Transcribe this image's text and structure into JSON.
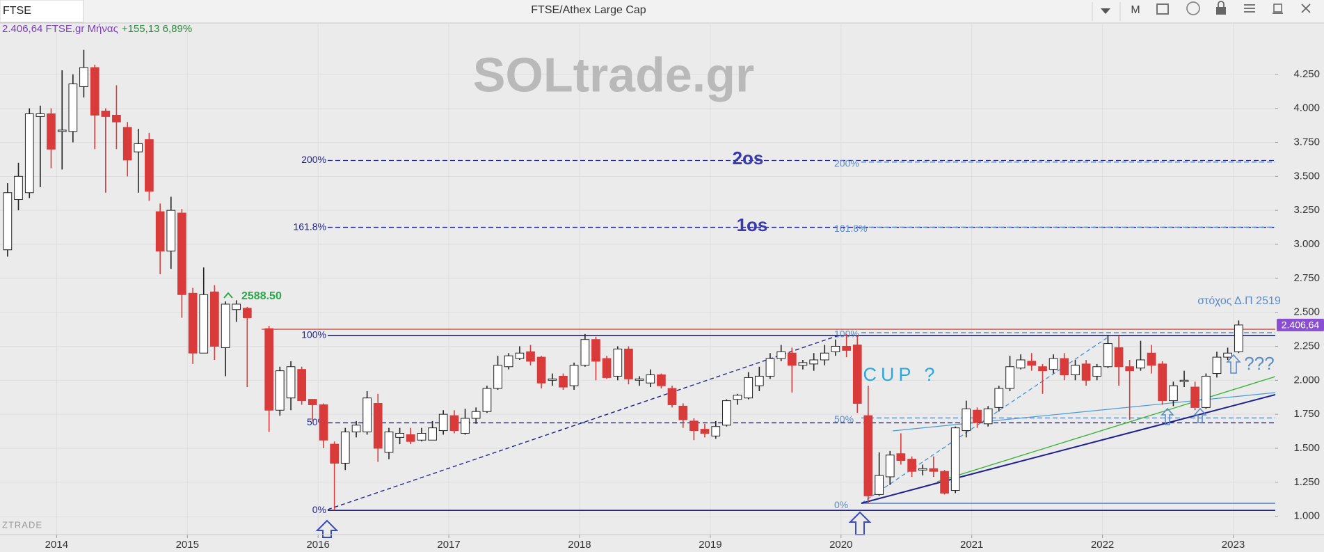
{
  "window": {
    "tab": "FTSE",
    "title": "FTSE/Athex Large Cap",
    "period_button": "M"
  },
  "chart_data": {
    "type": "candlestick",
    "info": "2.406,64 FTSE.gr Μήνας",
    "change": "+155,13 6,89%",
    "watermark": "SOLtrade.gr",
    "brand": "ZTRADE",
    "annotations": [
      "2os",
      "1os",
      "CUP ?",
      "στόχος Δ.Π 2519",
      "???",
      "2588.50"
    ],
    "up_color": "#ffffff",
    "up_stroke": "#222222",
    "down_color": "#d93a3a",
    "grid": true,
    "xlim": [
      2013.567,
      2023.322
    ],
    "xticks": [
      2014,
      2015,
      2016,
      2017,
      2018,
      2019,
      2020,
      2021,
      2022,
      2023
    ],
    "ylim": [
      865,
      4628
    ],
    "yticks": [
      {
        "value": 1000,
        "label": "1.000"
      },
      {
        "value": 1250,
        "label": "1.250"
      },
      {
        "value": 1500,
        "label": "1.500"
      },
      {
        "value": 1750,
        "label": "1.750"
      },
      {
        "value": 2000,
        "label": "2.000"
      },
      {
        "value": 2250,
        "label": "2.250"
      },
      {
        "value": 2500,
        "label": "2.500"
      },
      {
        "value": 2750,
        "label": "2.750"
      },
      {
        "value": 3000,
        "label": "3.000"
      },
      {
        "value": 3250,
        "label": "3.250"
      },
      {
        "value": 3500,
        "label": "3.500"
      },
      {
        "value": 3750,
        "label": "3.750"
      },
      {
        "value": 4000,
        "label": "4.000"
      },
      {
        "value": 4250,
        "label": "4.250"
      }
    ],
    "last_price": {
      "value": 2406.64,
      "label": "2.406,64"
    },
    "fibonacci": [
      {
        "color": "#1f1f8f",
        "levels": [
          {
            "value": 1043,
            "label": "0%",
            "style": "solid"
          },
          {
            "value": 1687,
            "label": "50%",
            "style": "dashed"
          },
          {
            "value": 2330,
            "label": "100%",
            "style": "solid"
          },
          {
            "value": 3125,
            "label": "161.8%",
            "style": "dashed"
          },
          {
            "value": 3617,
            "label": "200%",
            "style": "dashed"
          }
        ]
      },
      {
        "color": "#5b8ac7",
        "levels": [
          {
            "value": 1095,
            "label": "0%",
            "style": "solid"
          },
          {
            "value": 1723,
            "label": "50%",
            "style": "dashed"
          },
          {
            "value": 2350,
            "label": "100%",
            "style": "dashed"
          },
          {
            "value": 3126,
            "label": "161.8%",
            "style": "dashed"
          },
          {
            "value": 3605,
            "label": "200%",
            "style": "dashed"
          }
        ]
      }
    ],
    "x": [
      2013.625,
      2013.708,
      2013.792,
      2013.875,
      2013.958,
      2014.042,
      2014.125,
      2014.208,
      2014.292,
      2014.375,
      2014.458,
      2014.542,
      2014.625,
      2014.708,
      2014.792,
      2014.875,
      2014.958,
      2015.042,
      2015.125,
      2015.208,
      2015.292,
      2015.375,
      2015.458,
      2015.625,
      2015.708,
      2015.792,
      2015.875,
      2015.958,
      2016.042,
      2016.125,
      2016.208,
      2016.292,
      2016.375,
      2016.458,
      2016.542,
      2016.625,
      2016.708,
      2016.792,
      2016.875,
      2016.958,
      2017.042,
      2017.125,
      2017.208,
      2017.292,
      2017.375,
      2017.458,
      2017.542,
      2017.625,
      2017.708,
      2017.792,
      2017.875,
      2017.958,
      2018.042,
      2018.125,
      2018.208,
      2018.292,
      2018.375,
      2018.458,
      2018.542,
      2018.625,
      2018.708,
      2018.792,
      2018.875,
      2018.958,
      2019.042,
      2019.125,
      2019.208,
      2019.292,
      2019.375,
      2019.458,
      2019.542,
      2019.625,
      2019.708,
      2019.792,
      2019.875,
      2019.958,
      2020.042,
      2020.125,
      2020.208,
      2020.292,
      2020.375,
      2020.458,
      2020.542,
      2020.625,
      2020.708,
      2020.792,
      2020.875,
      2020.958,
      2021.042,
      2021.125,
      2021.208,
      2021.292,
      2021.375,
      2021.458,
      2021.542,
      2021.625,
      2021.708,
      2021.792,
      2021.875,
      2021.958,
      2022.042,
      2022.125,
      2022.208,
      2022.292,
      2022.375,
      2022.458,
      2022.542,
      2022.625,
      2022.708,
      2022.792,
      2022.875,
      2022.958,
      2023.042
    ],
    "open": [
      2960,
      3330,
      3380,
      3940,
      3960,
      3830,
      3830,
      4160,
      4300,
      3980,
      3950,
      3860,
      3680,
      3770,
      3240,
      2950,
      3230,
      2640,
      2200,
      2650,
      2240,
      2520,
      2530,
      2380,
      1780,
      1870,
      2080,
      1860,
      1820,
      1530,
      1390,
      1620,
      1620,
      1830,
      1470,
      1580,
      1600,
      1560,
      1560,
      1630,
      1740,
      1610,
      1720,
      1770,
      1940,
      2100,
      2160,
      2210,
      2170,
      2000,
      2030,
      1960,
      2110,
      2300,
      2160,
      2030,
      2230,
      2000,
      1980,
      2040,
      1940,
      1810,
      1700,
      1640,
      1590,
      1670,
      1860,
      1870,
      1960,
      2030,
      2160,
      2200,
      2110,
      2120,
      2150,
      2210,
      2250,
      2260,
      1740,
      1160,
      1290,
      1460,
      1420,
      1340,
      1350,
      1330,
      1190,
      1630,
      1780,
      1680,
      1800,
      1940,
      2090,
      2140,
      2100,
      2080,
      2160,
      2040,
      2120,
      2030,
      2100,
      2240,
      2100,
      2090,
      2200,
      2120,
      1850,
      1990,
      1950,
      1800,
      2050,
      2170,
      2210
    ],
    "high": [
      3450,
      3600,
      4000,
      4020,
      4000,
      4280,
      4250,
      4430,
      4320,
      4000,
      4170,
      3900,
      3850,
      3820,
      3300,
      3350,
      3260,
      2680,
      2830,
      2700,
      2580,
      2588.5,
      2540,
      2400,
      2100,
      2140,
      2100,
      1860,
      1830,
      1550,
      1650,
      1700,
      1920,
      1900,
      1650,
      1650,
      1650,
      1650,
      1700,
      1780,
      1780,
      1790,
      1800,
      1960,
      2180,
      2200,
      2250,
      2260,
      2180,
      2050,
      2050,
      2130,
      2340,
      2320,
      2180,
      2250,
      2250,
      2030,
      2080,
      2050,
      1960,
      1830,
      1720,
      1680,
      1700,
      1860,
      1900,
      2060,
      2100,
      2200,
      2260,
      2240,
      2150,
      2200,
      2260,
      2300,
      2340,
      2330,
      1960,
      1470,
      1480,
      1610,
      1440,
      1380,
      1440,
      1340,
      1660,
      1850,
      1800,
      1810,
      1960,
      2180,
      2190,
      2200,
      2120,
      2190,
      2200,
      2150,
      2150,
      2120,
      2330,
      2330,
      2150,
      2290,
      2260,
      2140,
      1990,
      2070,
      1990,
      2050,
      2210,
      2240,
      2440
    ],
    "low": [
      2910,
      3250,
      3340,
      3420,
      3560,
      3550,
      3750,
      4080,
      3700,
      3380,
      3700,
      3500,
      3380,
      3320,
      2780,
      2820,
      2460,
      2120,
      2200,
      2150,
      2030,
      2430,
      1950,
      1620,
      1740,
      1780,
      1820,
      1700,
      1500,
      1043,
      1340,
      1580,
      1600,
      1400,
      1420,
      1530,
      1530,
      1550,
      1560,
      1600,
      1610,
      1600,
      1680,
      1760,
      1930,
      2080,
      2150,
      2110,
      1940,
      1960,
      1930,
      1930,
      2100,
      2000,
      2010,
      2000,
      1970,
      1960,
      1950,
      1940,
      1800,
      1650,
      1560,
      1580,
      1570,
      1660,
      1820,
      1860,
      1920,
      2010,
      2140,
      1910,
      2080,
      2070,
      2110,
      2180,
      2170,
      1760,
      1095,
      1150,
      1230,
      1380,
      1290,
      1300,
      1290,
      1160,
      1170,
      1580,
      1650,
      1660,
      1770,
      1920,
      2080,
      2070,
      1900,
      2050,
      2000,
      2000,
      1960,
      2000,
      2090,
      1960,
      1710,
      2070,
      2050,
      1820,
      1810,
      1950,
      1780,
      1790,
      2020,
      2150,
      2200
    ],
    "close": [
      3380,
      3500,
      3960,
      3960,
      3700,
      3840,
      4180,
      4300,
      3950,
      3940,
      3900,
      3620,
      3740,
      3390,
      2950,
      3250,
      2630,
      2200,
      2630,
      2250,
      2560,
      2560,
      2460,
      1780,
      2070,
      2100,
      1850,
      1820,
      1560,
      1390,
      1620,
      1670,
      1870,
      1500,
      1620,
      1610,
      1550,
      1610,
      1650,
      1750,
      1630,
      1720,
      1770,
      1940,
      2110,
      2180,
      2200,
      2140,
      1980,
      2010,
      1950,
      2110,
      2300,
      2140,
      2020,
      2230,
      2010,
      2010,
      2040,
      1960,
      1820,
      1710,
      1630,
      1610,
      1660,
      1850,
      1890,
      2020,
      2030,
      2160,
      2210,
      2110,
      2130,
      2150,
      2200,
      2250,
      2220,
      1830,
      1150,
      1300,
      1450,
      1410,
      1330,
      1350,
      1330,
      1170,
      1650,
      1790,
      1690,
      1790,
      1940,
      2100,
      2150,
      2110,
      2070,
      2160,
      2040,
      2110,
      2000,
      2100,
      2270,
      2100,
      2070,
      2150,
      2110,
      1850,
      1960,
      2000,
      1800,
      2030,
      2170,
      2200,
      2406.64
    ]
  }
}
